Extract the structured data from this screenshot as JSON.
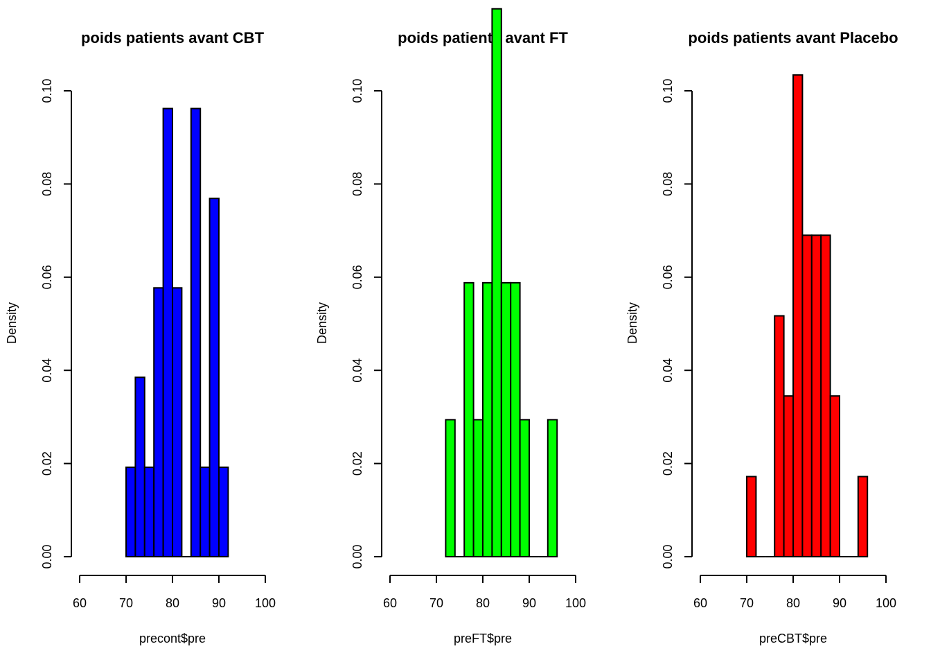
{
  "chart_data": [
    {
      "type": "bar",
      "title": "poids patients avant CBT",
      "xlabel": "precont$pre",
      "ylabel": "Density",
      "fill": "#0000ff",
      "xlim": [
        60,
        100
      ],
      "ylim": [
        0,
        0.1
      ],
      "xticks": [
        "60",
        "70",
        "80",
        "90",
        "100"
      ],
      "yticks": [
        "0.00",
        "0.02",
        "0.04",
        "0.06",
        "0.08",
        "0.10"
      ],
      "bins": [
        {
          "x0": 70,
          "x1": 72,
          "density": 0.0192
        },
        {
          "x0": 72,
          "x1": 74,
          "density": 0.0385
        },
        {
          "x0": 74,
          "x1": 76,
          "density": 0.0192
        },
        {
          "x0": 76,
          "x1": 78,
          "density": 0.0577
        },
        {
          "x0": 78,
          "x1": 80,
          "density": 0.0962
        },
        {
          "x0": 80,
          "x1": 82,
          "density": 0.0577
        },
        {
          "x0": 82,
          "x1": 84,
          "density": 0
        },
        {
          "x0": 84,
          "x1": 86,
          "density": 0.0962
        },
        {
          "x0": 86,
          "x1": 88,
          "density": 0.0192
        },
        {
          "x0": 88,
          "x1": 90,
          "density": 0.0769
        },
        {
          "x0": 90,
          "x1": 92,
          "density": 0.0192
        }
      ]
    },
    {
      "type": "bar",
      "title": "poids patients avant FT",
      "xlabel": "preFT$pre",
      "ylabel": "Density",
      "fill": "#00ff00",
      "xlim": [
        60,
        100
      ],
      "ylim": [
        0,
        0.1
      ],
      "xticks": [
        "60",
        "70",
        "80",
        "90",
        "100"
      ],
      "yticks": [
        "0.00",
        "0.02",
        "0.04",
        "0.06",
        "0.08",
        "0.10"
      ],
      "bins": [
        {
          "x0": 72,
          "x1": 74,
          "density": 0.0294
        },
        {
          "x0": 74,
          "x1": 76,
          "density": 0
        },
        {
          "x0": 76,
          "x1": 78,
          "density": 0.0588
        },
        {
          "x0": 78,
          "x1": 80,
          "density": 0.0294
        },
        {
          "x0": 80,
          "x1": 82,
          "density": 0.0588
        },
        {
          "x0": 82,
          "x1": 84,
          "density": 0.1176
        },
        {
          "x0": 84,
          "x1": 86,
          "density": 0.0588
        },
        {
          "x0": 86,
          "x1": 88,
          "density": 0.0588
        },
        {
          "x0": 88,
          "x1": 90,
          "density": 0.0294
        },
        {
          "x0": 90,
          "x1": 92,
          "density": 0
        },
        {
          "x0": 92,
          "x1": 94,
          "density": 0
        },
        {
          "x0": 94,
          "x1": 96,
          "density": 0.0294
        }
      ]
    },
    {
      "type": "bar",
      "title": "poids patients avant Placebo",
      "xlabel": "preCBT$pre",
      "ylabel": "Density",
      "fill": "#ff0000",
      "xlim": [
        60,
        100
      ],
      "ylim": [
        0,
        0.1
      ],
      "xticks": [
        "60",
        "70",
        "80",
        "90",
        "100"
      ],
      "yticks": [
        "0.00",
        "0.02",
        "0.04",
        "0.06",
        "0.08",
        "0.10"
      ],
      "bins": [
        {
          "x0": 70,
          "x1": 72,
          "density": 0.0172
        },
        {
          "x0": 72,
          "x1": 74,
          "density": 0
        },
        {
          "x0": 74,
          "x1": 76,
          "density": 0
        },
        {
          "x0": 76,
          "x1": 78,
          "density": 0.0517
        },
        {
          "x0": 78,
          "x1": 80,
          "density": 0.0345
        },
        {
          "x0": 80,
          "x1": 82,
          "density": 0.1034
        },
        {
          "x0": 82,
          "x1": 84,
          "density": 0.069
        },
        {
          "x0": 84,
          "x1": 86,
          "density": 0.069
        },
        {
          "x0": 86,
          "x1": 88,
          "density": 0.069
        },
        {
          "x0": 88,
          "x1": 90,
          "density": 0.0345
        },
        {
          "x0": 90,
          "x1": 92,
          "density": 0
        },
        {
          "x0": 92,
          "x1": 94,
          "density": 0
        },
        {
          "x0": 94,
          "x1": 96,
          "density": 0.0172
        }
      ]
    }
  ]
}
